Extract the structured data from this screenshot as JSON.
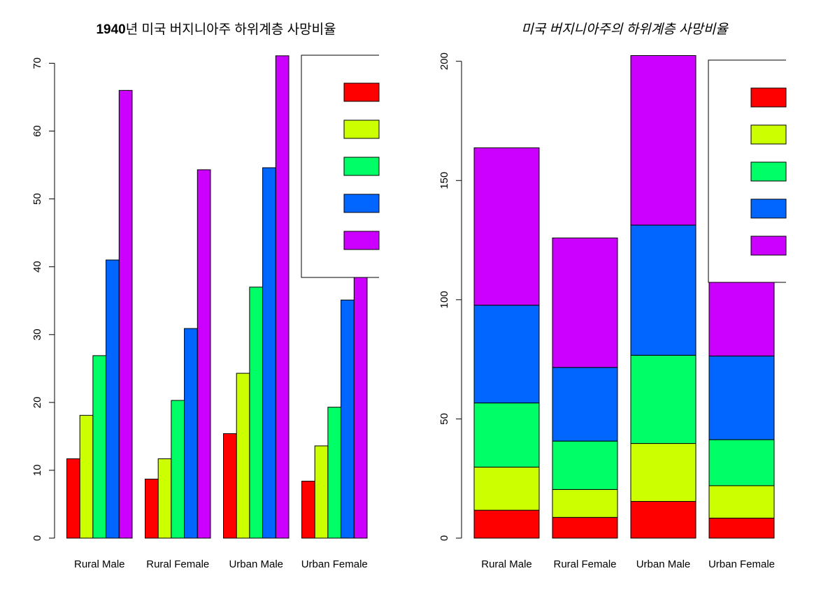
{
  "colors": [
    "#ff0000",
    "#ccff00",
    "#00ff66",
    "#0066ff",
    "#cc00ff"
  ],
  "chart_data": [
    {
      "type": "bar",
      "mode": "grouped",
      "title_bold_part": "1940",
      "title_rest": "년 미국 버지니아주 하위계층 사망비율",
      "categories": [
        "Rural Male",
        "Rural Female",
        "Urban Male",
        "Urban Female"
      ],
      "series": [
        {
          "values": [
            11.7,
            8.7,
            15.4,
            8.4
          ]
        },
        {
          "values": [
            18.1,
            11.7,
            24.3,
            13.6
          ]
        },
        {
          "values": [
            26.9,
            20.3,
            37.0,
            19.3
          ]
        },
        {
          "values": [
            41.0,
            30.9,
            54.6,
            35.1
          ]
        },
        {
          "values": [
            66.0,
            54.3,
            71.1,
            50.0
          ]
        }
      ],
      "yticks": [
        "0",
        "10",
        "20",
        "30",
        "40",
        "50",
        "60",
        "70"
      ],
      "ylim": [
        0,
        70
      ],
      "legend": "top-right",
      "grid": false
    },
    {
      "type": "bar",
      "mode": "stacked",
      "title": "미국 버지니아주의 하위계층 사망비율",
      "categories": [
        "Rural Male",
        "Rural Female",
        "Urban Male",
        "Urban Female"
      ],
      "series": [
        {
          "values": [
            11.7,
            8.7,
            15.4,
            8.4
          ]
        },
        {
          "values": [
            18.1,
            11.7,
            24.3,
            13.6
          ]
        },
        {
          "values": [
            26.9,
            20.3,
            37.0,
            19.3
          ]
        },
        {
          "values": [
            41.0,
            30.9,
            54.6,
            35.1
          ]
        },
        {
          "values": [
            66.0,
            54.3,
            71.1,
            50.0
          ]
        }
      ],
      "yticks": [
        "0",
        "50",
        "100",
        "150",
        "200"
      ],
      "ylim": [
        0,
        200
      ],
      "legend": "top-right",
      "grid": false
    }
  ]
}
